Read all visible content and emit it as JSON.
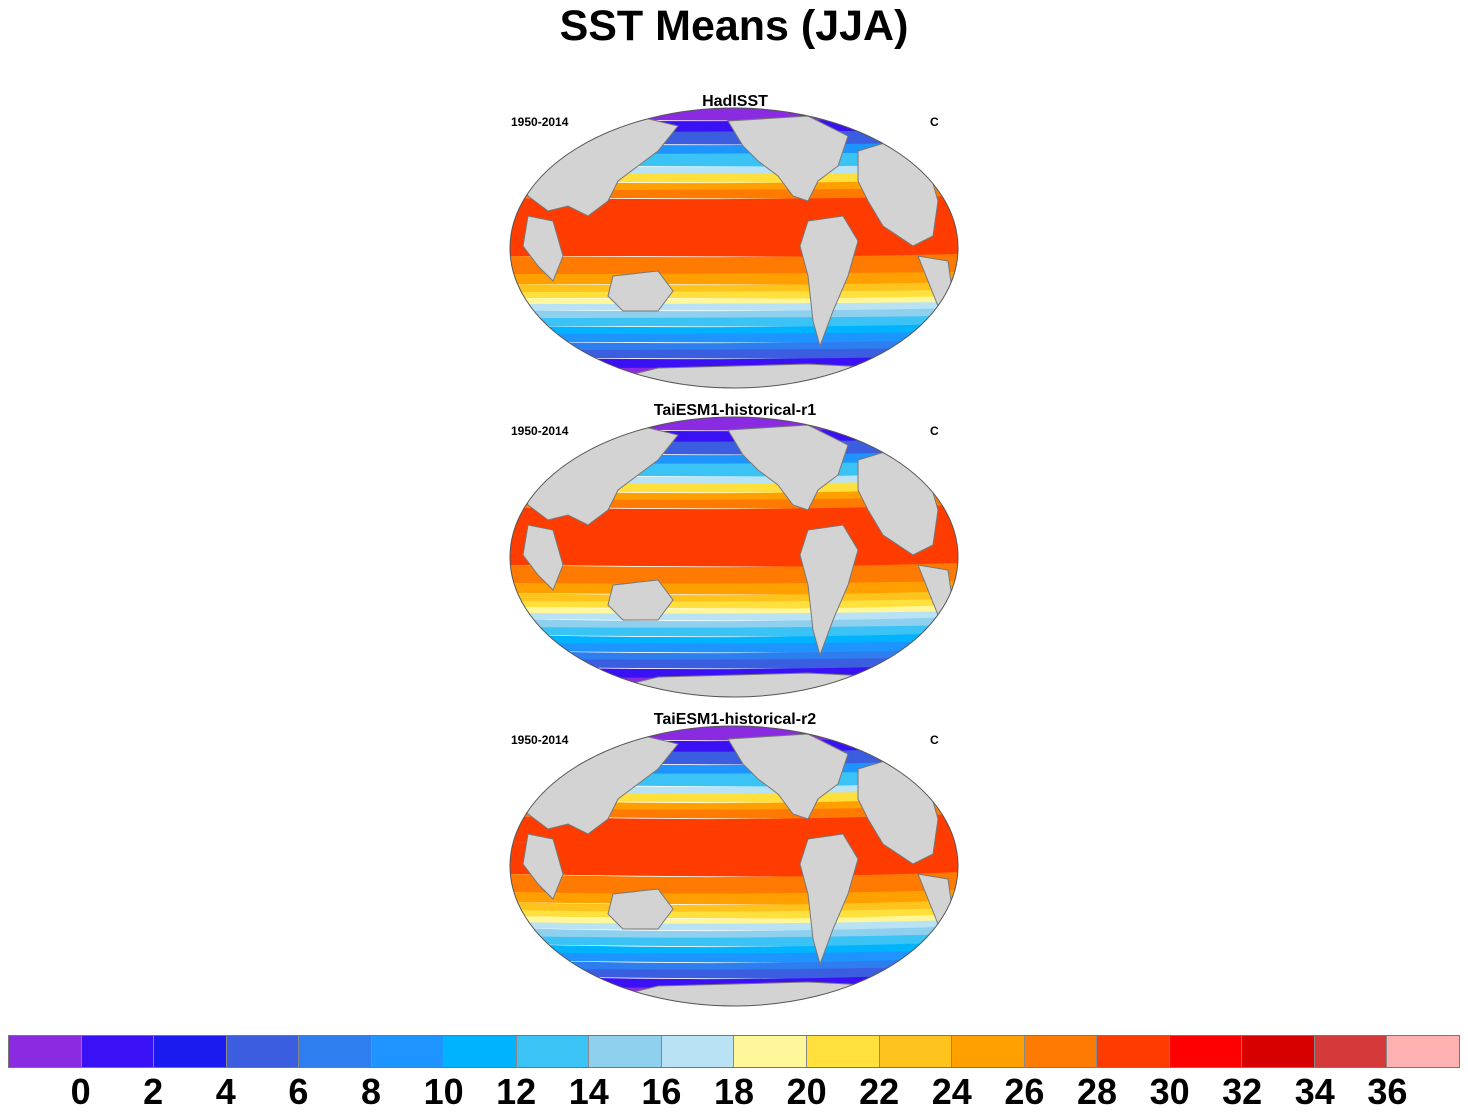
{
  "title": "SST Means (JJA)",
  "panels": [
    {
      "title": "HadISST",
      "period": "1950-2014",
      "units": "C"
    },
    {
      "title": "TaiESM1-historical-r1",
      "period": "1950-2014",
      "units": "C"
    },
    {
      "title": "TaiESM1-historical-r2",
      "period": "1950-2014",
      "units": "C"
    }
  ],
  "colorbar": {
    "labels": [
      "0",
      "2",
      "4",
      "6",
      "8",
      "10",
      "12",
      "14",
      "16",
      "18",
      "20",
      "22",
      "24",
      "26",
      "28",
      "30",
      "32",
      "34",
      "36"
    ],
    "colors": [
      "#8a2be2",
      "#3a10f5",
      "#1b1bef",
      "#3b5ee0",
      "#2f7ef0",
      "#1e94ff",
      "#00b3ff",
      "#3cc3f5",
      "#8fd0ef",
      "#b9e3f5",
      "#fff79a",
      "#ffe03c",
      "#ffc31e",
      "#ffa000",
      "#ff7a00",
      "#ff3c00",
      "#ff0000",
      "#d60000",
      "#d43a3a",
      "#ffb0b0"
    ]
  },
  "map_colors": {
    "land": "#d3d3d3",
    "coast": "#777777"
  }
}
